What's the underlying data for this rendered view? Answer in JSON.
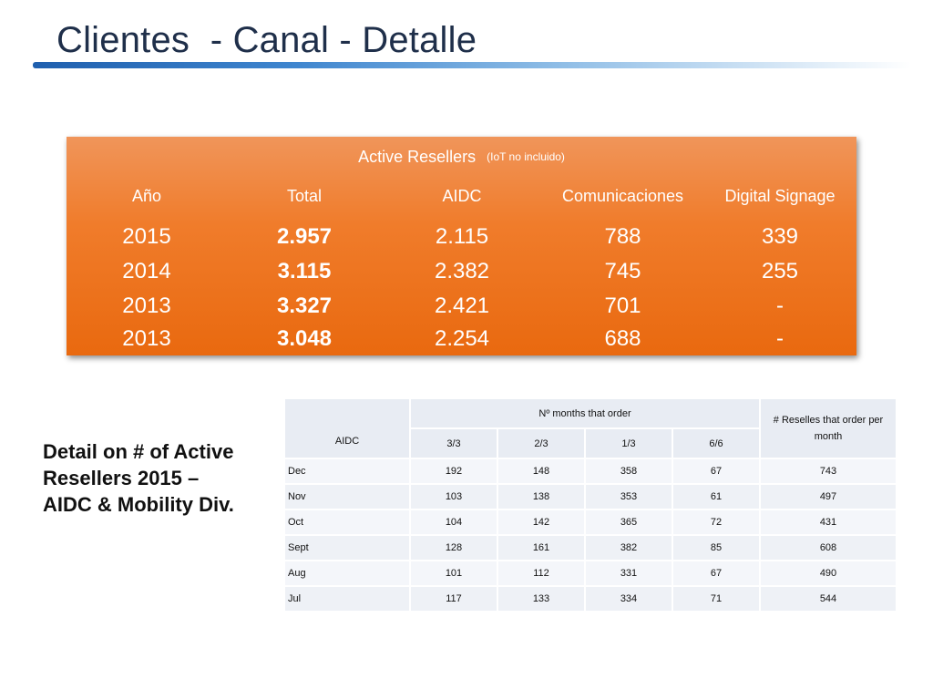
{
  "slide": {
    "title": "Clientes  - Canal - Detalle"
  },
  "summary": {
    "caption": "Active Resellers",
    "caption_sub": "(IoT no incluido)",
    "headers": [
      "Año",
      "Total",
      "AIDC",
      "Comunicaciones",
      "Digital Signage"
    ],
    "rows": [
      [
        "2015",
        "2.957",
        "2.115",
        "788",
        "339"
      ],
      [
        "2014",
        "3.115",
        "2.382",
        "745",
        "255"
      ],
      [
        "2013",
        "3.327",
        "2.421",
        "701",
        "-"
      ],
      [
        "2013",
        "3.048",
        "2.254",
        "688",
        "-"
      ]
    ],
    "colors": {
      "top": "#f0955a",
      "bottom": "#e9690f",
      "text": "#ffffff"
    }
  },
  "detail_caption": "Detail on # of Active Resellers 2015 – AIDC & Mobility Div.",
  "detail": {
    "col_aidc": "AIDC",
    "col_group": "Nº months that order",
    "col_resellers": "# Reselles that order per month",
    "sub_headers": [
      "3/3",
      "2/3",
      "1/3",
      "6/6"
    ],
    "rows": [
      [
        "Dec",
        "192",
        "148",
        "358",
        "67",
        "743"
      ],
      [
        "Nov",
        "103",
        "138",
        "353",
        "61",
        "497"
      ],
      [
        "Oct",
        "104",
        "142",
        "365",
        "72",
        "431"
      ],
      [
        "Sept",
        "128",
        "161",
        "382",
        "85",
        "608"
      ],
      [
        "Aug",
        "101",
        "112",
        "331",
        "67",
        "490"
      ],
      [
        "Jul",
        "117",
        "133",
        "334",
        "71",
        "544"
      ]
    ]
  },
  "theme": {
    "title_color": "#1f2f4a",
    "rule_color": "#1f5fae"
  }
}
